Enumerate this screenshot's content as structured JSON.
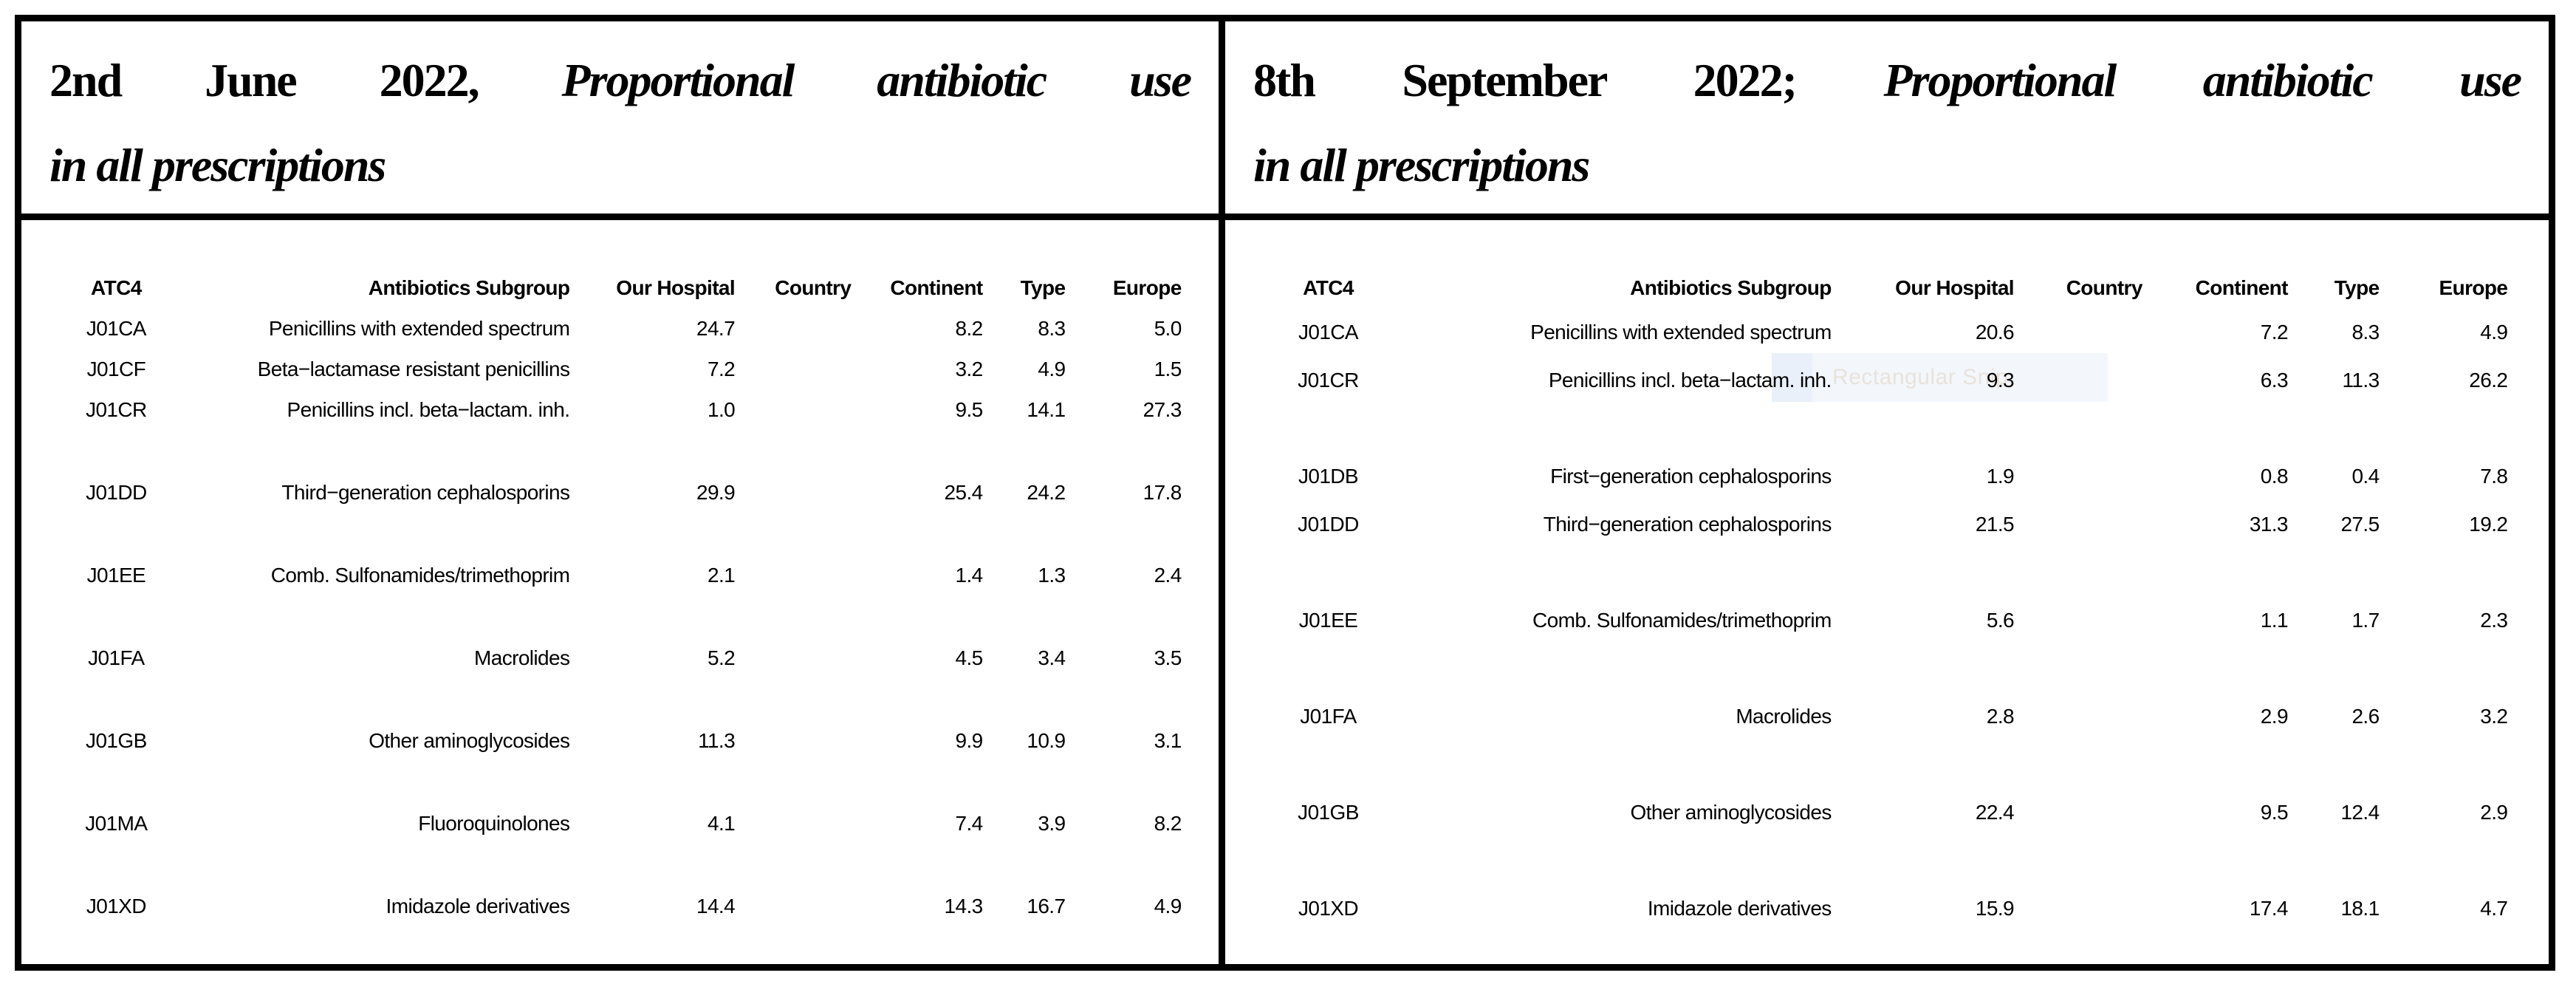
{
  "colors": {
    "frame_border": "#000000",
    "table_text": "#000000",
    "watermark_band": "#f3f7fb",
    "watermark_band_left": "#e9f0f9",
    "watermark_text": "#e8e2da"
  },
  "panels": [
    {
      "title": {
        "regular": "2nd June 2022,",
        "italic_line1": "Proportional antibiotic use",
        "italic_line2": "in all prescriptions"
      },
      "table": {
        "headers": [
          "ATC4",
          "Antibiotics Subgroup",
          "Our Hospital",
          "Country",
          "Continent",
          "Type",
          "Europe"
        ],
        "rows": [
          {
            "gap_before": false,
            "atc4": "J01CA",
            "subgroup": "Penicillins with extended spectrum",
            "our_hospital": "24.7",
            "country": "",
            "continent": "8.2",
            "type": "8.3",
            "europe": "5.0"
          },
          {
            "gap_before": false,
            "atc4": "J01CF",
            "subgroup": "Beta−lactamase resistant penicillins",
            "our_hospital": "7.2",
            "country": "",
            "continent": "3.2",
            "type": "4.9",
            "europe": "1.5"
          },
          {
            "gap_before": false,
            "atc4": "J01CR",
            "subgroup": "Penicillins incl. beta−lactam. inh.",
            "our_hospital": "1.0",
            "country": "",
            "continent": "9.5",
            "type": "14.1",
            "europe": "27.3"
          },
          {
            "gap_before": true,
            "atc4": "J01DD",
            "subgroup": "Third−generation cephalosporins",
            "our_hospital": "29.9",
            "country": "",
            "continent": "25.4",
            "type": "24.2",
            "europe": "17.8"
          },
          {
            "gap_before": true,
            "atc4": "J01EE",
            "subgroup": "Comb. Sulfonamides/trimethoprim",
            "our_hospital": "2.1",
            "country": "",
            "continent": "1.4",
            "type": "1.3",
            "europe": "2.4"
          },
          {
            "gap_before": true,
            "atc4": "J01FA",
            "subgroup": "Macrolides",
            "our_hospital": "5.2",
            "country": "",
            "continent": "4.5",
            "type": "3.4",
            "europe": "3.5"
          },
          {
            "gap_before": true,
            "atc4": "J01GB",
            "subgroup": "Other aminoglycosides",
            "our_hospital": "11.3",
            "country": "",
            "continent": "9.9",
            "type": "10.9",
            "europe": "3.1"
          },
          {
            "gap_before": true,
            "atc4": "J01MA",
            "subgroup": "Fluoroquinolones",
            "our_hospital": "4.1",
            "country": "",
            "continent": "7.4",
            "type": "3.9",
            "europe": "8.2"
          },
          {
            "gap_before": true,
            "atc4": "J01XD",
            "subgroup": "Imidazole derivatives",
            "our_hospital": "14.4",
            "country": "",
            "continent": "14.3",
            "type": "16.7",
            "europe": "4.9"
          }
        ]
      }
    },
    {
      "title": {
        "regular": "8th September 2022;",
        "italic_line1": "Proportional antibiotic use",
        "italic_line2": "in all prescriptions"
      },
      "watermark": {
        "label": "Rectangular Snip"
      },
      "table": {
        "headers": [
          "ATC4",
          "Antibiotics Subgroup",
          "Our Hospital",
          "Country",
          "Continent",
          "Type",
          "Europe"
        ],
        "rows": [
          {
            "gap_before": false,
            "atc4": "J01CA",
            "subgroup": "Penicillins with extended spectrum",
            "our_hospital": "20.6",
            "country": "",
            "continent": "7.2",
            "type": "8.3",
            "europe": "4.9"
          },
          {
            "gap_before": false,
            "atc4": "J01CR",
            "subgroup": "Penicillins incl. beta−lactam. inh.",
            "our_hospital": "9.3",
            "country": "",
            "continent": "6.3",
            "type": "11.3",
            "europe": "26.2"
          },
          {
            "gap_before": true,
            "atc4": "J01DB",
            "subgroup": "First−generation cephalosporins",
            "our_hospital": "1.9",
            "country": "",
            "continent": "0.8",
            "type": "0.4",
            "europe": "7.8"
          },
          {
            "gap_before": false,
            "atc4": "J01DD",
            "subgroup": "Third−generation cephalosporins",
            "our_hospital": "21.5",
            "country": "",
            "continent": "31.3",
            "type": "27.5",
            "europe": "19.2"
          },
          {
            "gap_before": true,
            "atc4": "J01EE",
            "subgroup": "Comb. Sulfonamides/trimethoprim",
            "our_hospital": "5.6",
            "country": "",
            "continent": "1.1",
            "type": "1.7",
            "europe": "2.3"
          },
          {
            "gap_before": true,
            "atc4": "J01FA",
            "subgroup": "Macrolides",
            "our_hospital": "2.8",
            "country": "",
            "continent": "2.9",
            "type": "2.6",
            "europe": "3.2"
          },
          {
            "gap_before": true,
            "atc4": "J01GB",
            "subgroup": "Other aminoglycosides",
            "our_hospital": "22.4",
            "country": "",
            "continent": "9.5",
            "type": "12.4",
            "europe": "2.9"
          },
          {
            "gap_before": true,
            "atc4": "J01XD",
            "subgroup": "Imidazole derivatives",
            "our_hospital": "15.9",
            "country": "",
            "continent": "17.4",
            "type": "18.1",
            "europe": "4.7"
          }
        ]
      }
    }
  ]
}
